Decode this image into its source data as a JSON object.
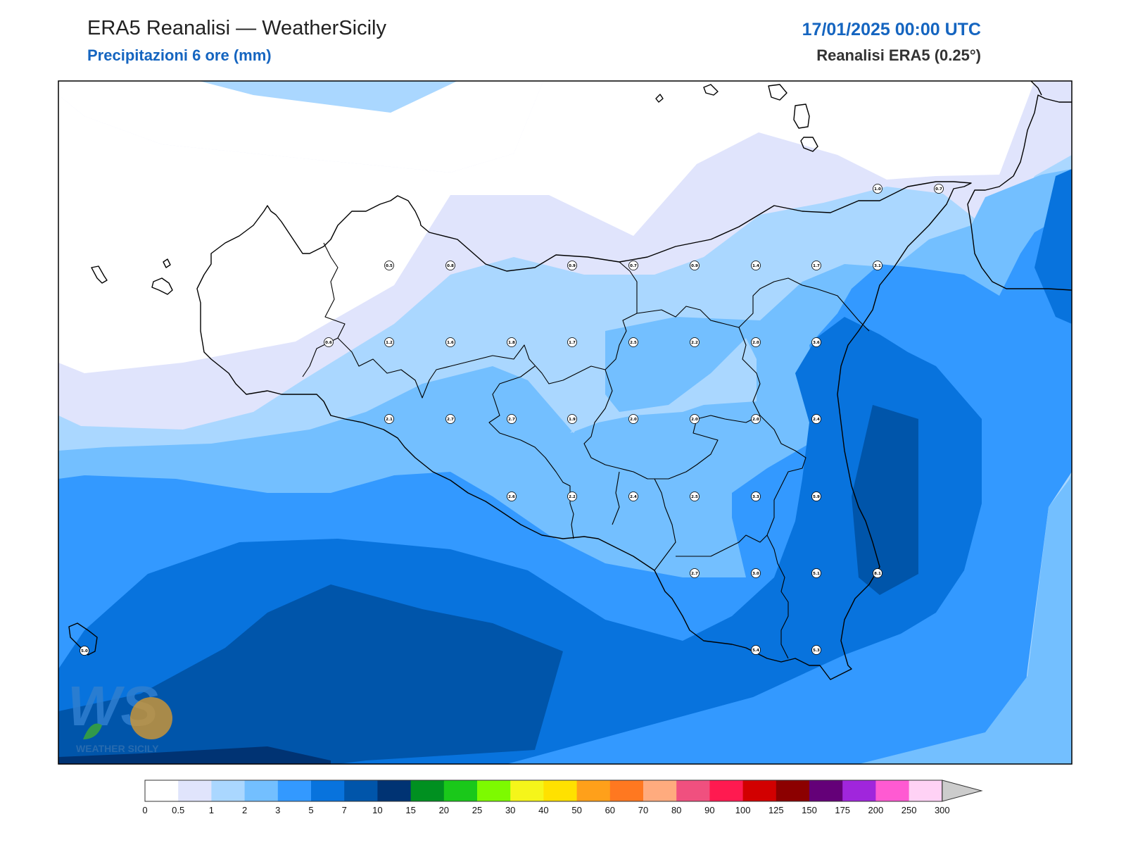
{
  "header": {
    "title": "ERA5 Reanalisi — WeatherSicily",
    "subtitle": "Precipitazioni 6 ore (mm)",
    "datetime": "17/01/2025 00:00 UTC",
    "source": "Reanalisi ERA5 (0.25°)"
  },
  "logo": {
    "letters": "WS",
    "text": "WEATHER SICILY"
  },
  "colorbar": {
    "ticks": [
      "0",
      "0.5",
      "1",
      "2",
      "3",
      "5",
      "7",
      "10",
      "15",
      "20",
      "25",
      "30",
      "40",
      "50",
      "60",
      "70",
      "80",
      "90",
      "100",
      "125",
      "150",
      "175",
      "200",
      "250",
      "300"
    ],
    "colors": [
      "#ffffff",
      "#e0e4fc",
      "#aad7ff",
      "#73bfff",
      "#3399ff",
      "#0873dd",
      "#0055aa",
      "#003373",
      "#009020",
      "#1ac81a",
      "#7dfa00",
      "#f5f51a",
      "#ffe100",
      "#ffa01a",
      "#ff7820",
      "#ffab7e",
      "#f0507f",
      "#ff1a50",
      "#d20000",
      "#8c0000",
      "#640078",
      "#a026dc",
      "#ff5ad2",
      "#ffd2f5"
    ],
    "extend_color": "#cccccc"
  },
  "map_points": [
    {
      "value": "0.5"
    },
    {
      "value": "0.8"
    },
    {
      "value": "0.9"
    },
    {
      "value": "0.7"
    },
    {
      "value": "0.9"
    },
    {
      "value": "1.4"
    },
    {
      "value": "1.7"
    },
    {
      "value": "3.1"
    },
    {
      "value": "1.0"
    },
    {
      "value": "0.7"
    },
    {
      "value": "0.6"
    },
    {
      "value": "1.2"
    },
    {
      "value": "1.6"
    },
    {
      "value": "1.8"
    },
    {
      "value": "1.7"
    },
    {
      "value": "2.5"
    },
    {
      "value": "2.2"
    },
    {
      "value": "2.0"
    },
    {
      "value": "3.6"
    },
    {
      "value": "2.1"
    },
    {
      "value": "2.7"
    },
    {
      "value": "2.7"
    },
    {
      "value": "1.9"
    },
    {
      "value": "2.0"
    },
    {
      "value": "2.0"
    },
    {
      "value": "2.0"
    },
    {
      "value": "2.4"
    },
    {
      "value": "2.6"
    },
    {
      "value": "2.2"
    },
    {
      "value": "2.4"
    },
    {
      "value": "2.5"
    },
    {
      "value": "3.3"
    },
    {
      "value": "5.9"
    },
    {
      "value": "2.7"
    },
    {
      "value": "3.0"
    },
    {
      "value": "5.1"
    },
    {
      "value": "8.1"
    },
    {
      "value": "5.4"
    },
    {
      "value": "5.3"
    },
    {
      "value": "5.0"
    }
  ]
}
